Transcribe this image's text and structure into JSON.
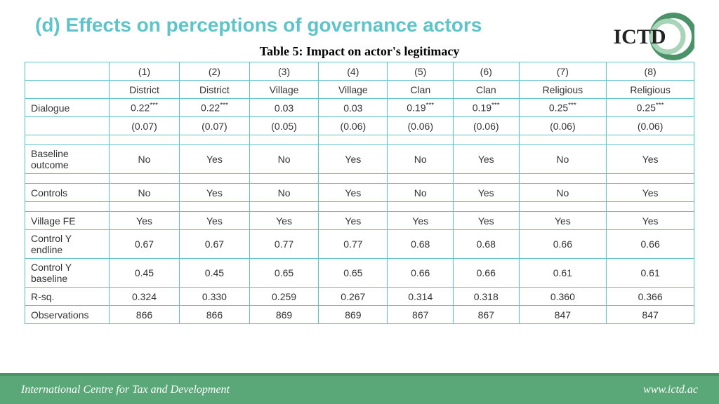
{
  "header": {
    "title": "(d) Effects on perceptions of governance actors",
    "logo_text": "ICTD"
  },
  "table": {
    "caption": "Table 5: Impact on actor's legitimacy",
    "col_nums": [
      "(1)",
      "(2)",
      "(3)",
      "(4)",
      "(5)",
      "(6)",
      "(7)",
      "(8)"
    ],
    "col_labels": [
      "District",
      "District",
      "Village",
      "Village",
      "Clan",
      "Clan",
      "Religious",
      "Religious"
    ],
    "rows": [
      {
        "label": "Dialogue",
        "cells": [
          "0.22***",
          "0.22***",
          "0.03",
          "0.03",
          "0.19***",
          "0.19***",
          "0.25***",
          "0.25***"
        ]
      },
      {
        "label": "",
        "cells": [
          "(0.07)",
          "(0.07)",
          "(0.05)",
          "(0.06)",
          "(0.06)",
          "(0.06)",
          "(0.06)",
          "(0.06)"
        ]
      },
      {
        "spacer": true
      },
      {
        "label": "Baseline outcome",
        "cells": [
          "No",
          "Yes",
          "No",
          "Yes",
          "No",
          "Yes",
          "No",
          "Yes"
        ]
      },
      {
        "spacer": true
      },
      {
        "label": "Controls",
        "cells": [
          "No",
          "Yes",
          "No",
          "Yes",
          "No",
          "Yes",
          "No",
          "Yes"
        ]
      },
      {
        "spacer": true
      },
      {
        "label": "Village FE",
        "cells": [
          "Yes",
          "Yes",
          "Yes",
          "Yes",
          "Yes",
          "Yes",
          "Yes",
          "Yes"
        ]
      },
      {
        "label": "Control Y endline",
        "cells": [
          "0.67",
          "0.67",
          "0.77",
          "0.77",
          "0.68",
          "0.68",
          "0.66",
          "0.66"
        ]
      },
      {
        "label": "Control Y baseline",
        "cells": [
          "0.45",
          "0.45",
          "0.65",
          "0.65",
          "0.66",
          "0.66",
          "0.61",
          "0.61"
        ]
      },
      {
        "label": "R-sq.",
        "cells": [
          "0.324",
          "0.330",
          "0.259",
          "0.267",
          "0.314",
          "0.318",
          "0.360",
          "0.366"
        ]
      },
      {
        "label": "Observations",
        "cells": [
          "866",
          "866",
          "869",
          "869",
          "867",
          "867",
          "847",
          "847"
        ]
      }
    ]
  },
  "footer": {
    "org": "International Centre for Tax and Development",
    "url": "www.ictd.ac"
  },
  "colors": {
    "accent": "#5ec4c9",
    "footer_bg": "#5aa878",
    "logo_ring_outer": "#4a9268",
    "logo_ring_inner": "#a8d4b8"
  }
}
